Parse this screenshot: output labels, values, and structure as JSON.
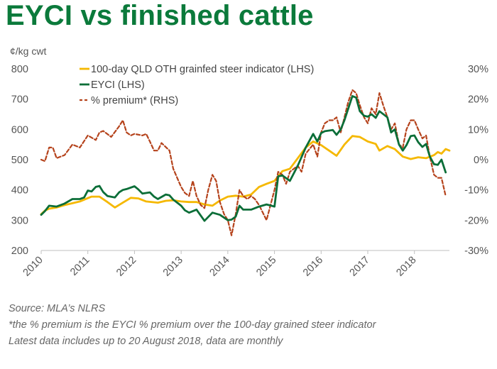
{
  "title": "EYCI vs finished cattle",
  "notes": {
    "source": "Source: MLA’s NLRS",
    "footnote": "*the % premium is the EYCI % premium over the 100-day grained steer indicator",
    "latest": "Latest data includes up to 20 August 2018, data are monthly"
  },
  "chart_data": {
    "type": "line",
    "ylabel_left": "¢/kg cwt",
    "ylim_left": [
      200,
      800
    ],
    "yticks_left": [
      "200",
      "300",
      "400",
      "500",
      "600",
      "700",
      "800"
    ],
    "ylim_right": [
      -30,
      30
    ],
    "yticks_right": [
      "-30%",
      "-20%",
      "-10%",
      "0%",
      "10%",
      "20%",
      "30%"
    ],
    "xlim": [
      2010,
      2018.75
    ],
    "xticks": [
      "2010",
      "2011",
      "2012",
      "2013",
      "2014",
      "2015",
      "2016",
      "2017",
      "2018"
    ],
    "grid": false,
    "legend_position": "top-center",
    "series": [
      {
        "name": "100-day QLD OTH grainfed steer indicator (LHS)",
        "axis": "left",
        "color": "#f5b800",
        "style": "solid",
        "points": [
          [
            2010.0,
            320
          ],
          [
            2010.08,
            332
          ],
          [
            2010.17,
            338
          ],
          [
            2010.33,
            342
          ],
          [
            2010.5,
            350
          ],
          [
            2010.67,
            356
          ],
          [
            2010.83,
            362
          ],
          [
            2011.0,
            373
          ],
          [
            2011.08,
            378
          ],
          [
            2011.25,
            378
          ],
          [
            2011.42,
            360
          ],
          [
            2011.58,
            342
          ],
          [
            2011.75,
            358
          ],
          [
            2011.92,
            374
          ],
          [
            2012.08,
            372
          ],
          [
            2012.25,
            362
          ],
          [
            2012.5,
            358
          ],
          [
            2012.67,
            364
          ],
          [
            2012.83,
            366
          ],
          [
            2013.0,
            362
          ],
          [
            2013.17,
            360
          ],
          [
            2013.33,
            360
          ],
          [
            2013.5,
            352
          ],
          [
            2013.67,
            348
          ],
          [
            2013.83,
            365
          ],
          [
            2014.0,
            378
          ],
          [
            2014.17,
            381
          ],
          [
            2014.33,
            378
          ],
          [
            2014.5,
            385
          ],
          [
            2014.67,
            410
          ],
          [
            2014.83,
            420
          ],
          [
            2015.0,
            430
          ],
          [
            2015.17,
            462
          ],
          [
            2015.33,
            470
          ],
          [
            2015.5,
            505
          ],
          [
            2015.67,
            540
          ],
          [
            2015.83,
            560
          ],
          [
            2016.0,
            548
          ],
          [
            2016.17,
            530
          ],
          [
            2016.33,
            513
          ],
          [
            2016.5,
            550
          ],
          [
            2016.67,
            578
          ],
          [
            2016.83,
            575
          ],
          [
            2017.0,
            560
          ],
          [
            2017.17,
            552
          ],
          [
            2017.25,
            530
          ],
          [
            2017.42,
            545
          ],
          [
            2017.58,
            535
          ],
          [
            2017.75,
            510
          ],
          [
            2017.92,
            502
          ],
          [
            2018.08,
            508
          ],
          [
            2018.25,
            505
          ],
          [
            2018.42,
            515
          ],
          [
            2018.5,
            525
          ],
          [
            2018.58,
            520
          ],
          [
            2018.67,
            535
          ],
          [
            2018.75,
            530
          ]
        ]
      },
      {
        "name": "EYCI (LHS)",
        "axis": "left",
        "color": "#0b6e38",
        "style": "solid",
        "points": [
          [
            2010.0,
            318
          ],
          [
            2010.08,
            330
          ],
          [
            2010.17,
            348
          ],
          [
            2010.33,
            345
          ],
          [
            2010.5,
            355
          ],
          [
            2010.67,
            370
          ],
          [
            2010.83,
            370
          ],
          [
            2010.92,
            375
          ],
          [
            2011.0,
            398
          ],
          [
            2011.08,
            395
          ],
          [
            2011.17,
            410
          ],
          [
            2011.25,
            413
          ],
          [
            2011.33,
            393
          ],
          [
            2011.42,
            380
          ],
          [
            2011.58,
            375
          ],
          [
            2011.67,
            392
          ],
          [
            2011.75,
            400
          ],
          [
            2011.83,
            403
          ],
          [
            2012.0,
            412
          ],
          [
            2012.08,
            402
          ],
          [
            2012.17,
            388
          ],
          [
            2012.33,
            392
          ],
          [
            2012.42,
            378
          ],
          [
            2012.5,
            370
          ],
          [
            2012.67,
            385
          ],
          [
            2012.75,
            382
          ],
          [
            2012.83,
            368
          ],
          [
            2013.0,
            348
          ],
          [
            2013.08,
            333
          ],
          [
            2013.17,
            325
          ],
          [
            2013.33,
            335
          ],
          [
            2013.5,
            298
          ],
          [
            2013.67,
            325
          ],
          [
            2013.83,
            318
          ],
          [
            2014.0,
            300
          ],
          [
            2014.08,
            302
          ],
          [
            2014.17,
            312
          ],
          [
            2014.25,
            348
          ],
          [
            2014.33,
            335
          ],
          [
            2014.5,
            335
          ],
          [
            2014.67,
            345
          ],
          [
            2014.83,
            352
          ],
          [
            2015.0,
            345
          ],
          [
            2015.08,
            445
          ],
          [
            2015.17,
            448
          ],
          [
            2015.33,
            430
          ],
          [
            2015.5,
            480
          ],
          [
            2015.67,
            540
          ],
          [
            2015.83,
            585
          ],
          [
            2015.92,
            560
          ],
          [
            2016.0,
            588
          ],
          [
            2016.08,
            594
          ],
          [
            2016.25,
            598
          ],
          [
            2016.33,
            582
          ],
          [
            2016.42,
            600
          ],
          [
            2016.5,
            630
          ],
          [
            2016.58,
            668
          ],
          [
            2016.67,
            710
          ],
          [
            2016.75,
            705
          ],
          [
            2016.83,
            660
          ],
          [
            2016.92,
            645
          ],
          [
            2017.0,
            642
          ],
          [
            2017.08,
            650
          ],
          [
            2017.17,
            638
          ],
          [
            2017.25,
            660
          ],
          [
            2017.42,
            640
          ],
          [
            2017.5,
            590
          ],
          [
            2017.58,
            600
          ],
          [
            2017.67,
            550
          ],
          [
            2017.75,
            530
          ],
          [
            2017.83,
            548
          ],
          [
            2017.92,
            578
          ],
          [
            2018.0,
            580
          ],
          [
            2018.08,
            558
          ],
          [
            2018.17,
            542
          ],
          [
            2018.25,
            552
          ],
          [
            2018.33,
            510
          ],
          [
            2018.42,
            485
          ],
          [
            2018.5,
            483
          ],
          [
            2018.58,
            500
          ],
          [
            2018.67,
            458
          ]
        ]
      },
      {
        "name": "% premium* (RHS)",
        "axis": "right",
        "color": "#b5431c",
        "style": "dashed",
        "points": [
          [
            2010.0,
            0
          ],
          [
            2010.08,
            -0.5
          ],
          [
            2010.17,
            4
          ],
          [
            2010.25,
            4
          ],
          [
            2010.33,
            0.5
          ],
          [
            2010.5,
            1.5
          ],
          [
            2010.67,
            5
          ],
          [
            2010.83,
            4
          ],
          [
            2011.0,
            8
          ],
          [
            2011.17,
            6.5
          ],
          [
            2011.25,
            9
          ],
          [
            2011.33,
            9.5
          ],
          [
            2011.5,
            7.5
          ],
          [
            2011.67,
            11
          ],
          [
            2011.75,
            13
          ],
          [
            2011.83,
            9
          ],
          [
            2011.92,
            8
          ],
          [
            2012.0,
            8.5
          ],
          [
            2012.17,
            8
          ],
          [
            2012.25,
            8.5
          ],
          [
            2012.33,
            6
          ],
          [
            2012.42,
            3
          ],
          [
            2012.5,
            3
          ],
          [
            2012.58,
            5.5
          ],
          [
            2012.75,
            3
          ],
          [
            2012.83,
            -3
          ],
          [
            2013.0,
            -9
          ],
          [
            2013.08,
            -11
          ],
          [
            2013.17,
            -12
          ],
          [
            2013.25,
            -7
          ],
          [
            2013.33,
            -12
          ],
          [
            2013.42,
            -15
          ],
          [
            2013.5,
            -16
          ],
          [
            2013.58,
            -10
          ],
          [
            2013.67,
            -5
          ],
          [
            2013.75,
            -7
          ],
          [
            2013.83,
            -14
          ],
          [
            2013.92,
            -18
          ],
          [
            2014.0,
            -20
          ],
          [
            2014.08,
            -25
          ],
          [
            2014.17,
            -18
          ],
          [
            2014.25,
            -10
          ],
          [
            2014.33,
            -12
          ],
          [
            2014.42,
            -13
          ],
          [
            2014.5,
            -12
          ],
          [
            2014.58,
            -13
          ],
          [
            2014.67,
            -15
          ],
          [
            2014.83,
            -20
          ],
          [
            2015.0,
            -10
          ],
          [
            2015.08,
            -4
          ],
          [
            2015.17,
            -5
          ],
          [
            2015.25,
            -8
          ],
          [
            2015.33,
            -4
          ],
          [
            2015.5,
            -2
          ],
          [
            2015.58,
            -4
          ],
          [
            2015.67,
            2
          ],
          [
            2015.83,
            5
          ],
          [
            2015.92,
            1
          ],
          [
            2016.0,
            9
          ],
          [
            2016.08,
            12
          ],
          [
            2016.17,
            13
          ],
          [
            2016.25,
            13
          ],
          [
            2016.33,
            14
          ],
          [
            2016.42,
            9
          ],
          [
            2016.5,
            14
          ],
          [
            2016.58,
            19
          ],
          [
            2016.67,
            23
          ],
          [
            2016.75,
            22
          ],
          [
            2016.83,
            18
          ],
          [
            2016.92,
            14
          ],
          [
            2017.0,
            12
          ],
          [
            2017.08,
            17
          ],
          [
            2017.17,
            15
          ],
          [
            2017.25,
            22
          ],
          [
            2017.33,
            18
          ],
          [
            2017.42,
            14
          ],
          [
            2017.5,
            10
          ],
          [
            2017.58,
            12
          ],
          [
            2017.67,
            5
          ],
          [
            2017.75,
            4
          ],
          [
            2017.83,
            10
          ],
          [
            2017.92,
            13
          ],
          [
            2018.0,
            13
          ],
          [
            2018.08,
            10
          ],
          [
            2018.17,
            7
          ],
          [
            2018.25,
            8
          ],
          [
            2018.33,
            1
          ],
          [
            2018.42,
            -5
          ],
          [
            2018.5,
            -6
          ],
          [
            2018.58,
            -6
          ],
          [
            2018.67,
            -12
          ]
        ]
      }
    ]
  }
}
